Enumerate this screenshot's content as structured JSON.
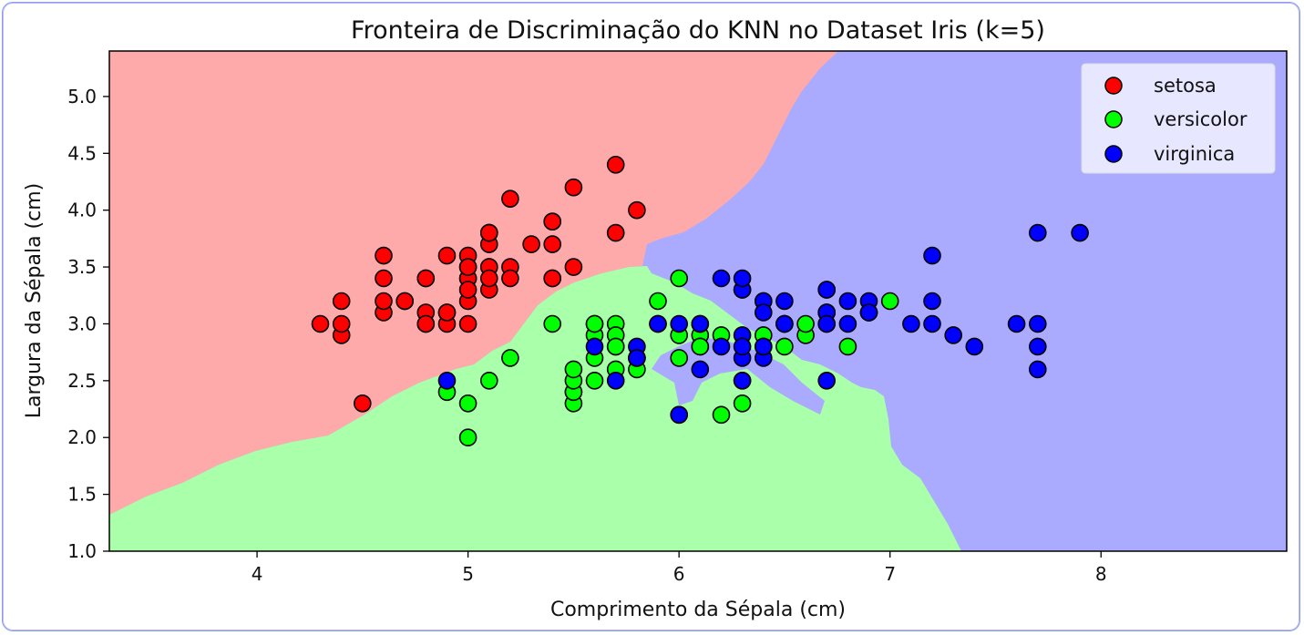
{
  "chart_data": {
    "type": "scatter",
    "title": "Fronteira de Discriminação do KNN no Dataset Iris (k=5)",
    "xlabel": "Comprimento da Sépala (cm)",
    "ylabel": "Largura da Sépala (cm)",
    "xlim": [
      3.3,
      8.88
    ],
    "ylim": [
      1.0,
      5.4
    ],
    "xticks": [
      "4",
      "5",
      "6",
      "7",
      "8"
    ],
    "yticks": [
      "1.0",
      "1.5",
      "2.0",
      "2.5",
      "3.0",
      "3.5",
      "4.0",
      "4.5",
      "5.0"
    ],
    "grid": false,
    "legend_position": "top-right",
    "background": "decision regions (k=5 nearest neighbours)",
    "series": [
      {
        "name": "setosa",
        "color": "#ff0000",
        "region_color": "#ffaaaa",
        "points": [
          [
            5.1,
            3.5
          ],
          [
            4.9,
            3.0
          ],
          [
            4.7,
            3.2
          ],
          [
            4.6,
            3.1
          ],
          [
            5.0,
            3.6
          ],
          [
            5.4,
            3.9
          ],
          [
            4.6,
            3.4
          ],
          [
            5.0,
            3.4
          ],
          [
            4.4,
            2.9
          ],
          [
            4.9,
            3.1
          ],
          [
            5.4,
            3.7
          ],
          [
            4.8,
            3.4
          ],
          [
            4.8,
            3.0
          ],
          [
            4.3,
            3.0
          ],
          [
            5.8,
            4.0
          ],
          [
            5.7,
            4.4
          ],
          [
            5.4,
            3.9
          ],
          [
            5.1,
            3.5
          ],
          [
            5.7,
            3.8
          ],
          [
            5.1,
            3.8
          ],
          [
            5.4,
            3.4
          ],
          [
            5.1,
            3.7
          ],
          [
            4.6,
            3.6
          ],
          [
            5.1,
            3.3
          ],
          [
            4.8,
            3.4
          ],
          [
            5.0,
            3.0
          ],
          [
            5.0,
            3.4
          ],
          [
            5.2,
            3.5
          ],
          [
            5.2,
            3.4
          ],
          [
            4.7,
            3.2
          ],
          [
            4.8,
            3.1
          ],
          [
            5.4,
            3.4
          ],
          [
            5.2,
            4.1
          ],
          [
            5.5,
            4.2
          ],
          [
            4.9,
            3.1
          ],
          [
            5.0,
            3.2
          ],
          [
            5.5,
            3.5
          ],
          [
            4.9,
            3.6
          ],
          [
            4.4,
            3.0
          ],
          [
            5.1,
            3.4
          ],
          [
            5.0,
            3.5
          ],
          [
            4.5,
            2.3
          ],
          [
            4.4,
            3.2
          ],
          [
            5.0,
            3.5
          ],
          [
            5.1,
            3.8
          ],
          [
            4.8,
            3.0
          ],
          [
            5.1,
            3.8
          ],
          [
            4.6,
            3.2
          ],
          [
            5.3,
            3.7
          ],
          [
            5.0,
            3.3
          ]
        ]
      },
      {
        "name": "versicolor",
        "color": "#00ff00",
        "region_color": "#aaffaa",
        "points": [
          [
            7.0,
            3.2
          ],
          [
            6.4,
            3.2
          ],
          [
            6.9,
            3.1
          ],
          [
            5.5,
            2.3
          ],
          [
            6.5,
            2.8
          ],
          [
            5.7,
            2.8
          ],
          [
            6.3,
            3.3
          ],
          [
            4.9,
            2.4
          ],
          [
            6.6,
            2.9
          ],
          [
            5.2,
            2.7
          ],
          [
            5.0,
            2.0
          ],
          [
            5.9,
            3.0
          ],
          [
            6.0,
            2.2
          ],
          [
            6.1,
            2.9
          ],
          [
            5.6,
            2.9
          ],
          [
            6.7,
            3.1
          ],
          [
            5.6,
            3.0
          ],
          [
            5.8,
            2.7
          ],
          [
            6.2,
            2.2
          ],
          [
            5.6,
            2.5
          ],
          [
            5.9,
            3.2
          ],
          [
            6.1,
            2.8
          ],
          [
            6.3,
            2.5
          ],
          [
            6.1,
            2.8
          ],
          [
            6.4,
            2.9
          ],
          [
            6.6,
            3.0
          ],
          [
            6.8,
            2.8
          ],
          [
            6.7,
            3.0
          ],
          [
            6.0,
            2.9
          ],
          [
            5.7,
            2.6
          ],
          [
            5.5,
            2.4
          ],
          [
            5.5,
            2.4
          ],
          [
            5.8,
            2.7
          ],
          [
            6.0,
            2.7
          ],
          [
            5.4,
            3.0
          ],
          [
            6.0,
            3.4
          ],
          [
            6.7,
            3.1
          ],
          [
            6.3,
            2.3
          ],
          [
            5.6,
            3.0
          ],
          [
            5.5,
            2.5
          ],
          [
            5.5,
            2.6
          ],
          [
            6.1,
            3.0
          ],
          [
            5.8,
            2.6
          ],
          [
            5.0,
            2.3
          ],
          [
            5.6,
            2.7
          ],
          [
            5.7,
            3.0
          ],
          [
            5.7,
            2.9
          ],
          [
            6.2,
            2.9
          ],
          [
            5.1,
            2.5
          ],
          [
            5.7,
            2.8
          ]
        ]
      },
      {
        "name": "virginica",
        "color": "#0000ff",
        "region_color": "#aaaaff",
        "points": [
          [
            6.3,
            3.3
          ],
          [
            5.8,
            2.7
          ],
          [
            7.1,
            3.0
          ],
          [
            6.3,
            2.9
          ],
          [
            6.5,
            3.0
          ],
          [
            7.6,
            3.0
          ],
          [
            4.9,
            2.5
          ],
          [
            7.3,
            2.9
          ],
          [
            6.7,
            2.5
          ],
          [
            7.2,
            3.6
          ],
          [
            6.5,
            3.2
          ],
          [
            6.4,
            2.7
          ],
          [
            6.8,
            3.0
          ],
          [
            5.7,
            2.5
          ],
          [
            5.8,
            2.8
          ],
          [
            6.4,
            3.2
          ],
          [
            6.5,
            3.0
          ],
          [
            7.7,
            3.8
          ],
          [
            7.7,
            2.6
          ],
          [
            6.0,
            2.2
          ],
          [
            6.9,
            3.2
          ],
          [
            5.6,
            2.8
          ],
          [
            7.7,
            2.8
          ],
          [
            6.3,
            2.7
          ],
          [
            6.7,
            3.3
          ],
          [
            7.2,
            3.2
          ],
          [
            6.2,
            2.8
          ],
          [
            6.1,
            3.0
          ],
          [
            6.4,
            2.8
          ],
          [
            7.2,
            3.0
          ],
          [
            7.4,
            2.8
          ],
          [
            7.9,
            3.8
          ],
          [
            6.4,
            2.8
          ],
          [
            6.3,
            2.8
          ],
          [
            6.1,
            2.6
          ],
          [
            7.7,
            3.0
          ],
          [
            6.3,
            3.4
          ],
          [
            6.4,
            3.1
          ],
          [
            6.0,
            3.0
          ],
          [
            6.9,
            3.1
          ],
          [
            6.7,
            3.1
          ],
          [
            6.9,
            3.1
          ],
          [
            5.8,
            2.7
          ],
          [
            6.8,
            3.2
          ],
          [
            6.7,
            3.3
          ],
          [
            6.7,
            3.0
          ],
          [
            6.3,
            2.5
          ],
          [
            6.5,
            3.0
          ],
          [
            6.2,
            3.4
          ],
          [
            5.9,
            3.0
          ]
        ]
      }
    ]
  }
}
